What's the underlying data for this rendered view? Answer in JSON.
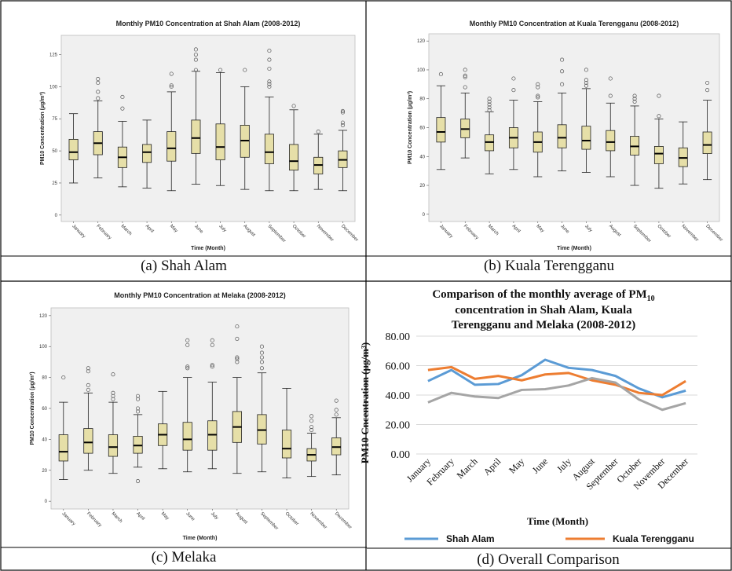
{
  "chart_data": [
    {
      "type": "boxplot",
      "caption": "(a) Shah Alam",
      "title": "Monthly PM10 Concentration at Shah Alam (2008-2012)",
      "xlabel": "Time (Month)",
      "ylabel": "PM10 Concentration (µg/m³)",
      "ylim": [
        -5,
        140
      ],
      "yticks": [
        0,
        25,
        50,
        75,
        100,
        125
      ],
      "categories": [
        "January",
        "February",
        "March",
        "April",
        "May",
        "June",
        "July",
        "August",
        "September",
        "October",
        "November",
        "December"
      ],
      "boxes": [
        {
          "min": 25,
          "q1": 43,
          "median": 49,
          "q3": 59,
          "max": 79,
          "outliers": []
        },
        {
          "min": 29,
          "q1": 47,
          "median": 56,
          "q3": 65,
          "max": 89,
          "outliers": [
            91,
            96,
            103,
            106
          ]
        },
        {
          "min": 22,
          "q1": 37,
          "median": 45,
          "q3": 53,
          "max": 73,
          "outliers": [
            83,
            92
          ]
        },
        {
          "min": 21,
          "q1": 41,
          "median": 49,
          "q3": 55,
          "max": 74,
          "outliers": []
        },
        {
          "min": 19,
          "q1": 42,
          "median": 52,
          "q3": 65,
          "max": 96,
          "outliers": [
            100,
            101,
            110
          ]
        },
        {
          "min": 24,
          "q1": 48,
          "median": 60,
          "q3": 74,
          "max": 112,
          "outliers": [
            113,
            121,
            125,
            129
          ]
        },
        {
          "min": 23,
          "q1": 43,
          "median": 53,
          "q3": 71,
          "max": 111,
          "outliers": [
            113
          ]
        },
        {
          "min": 20,
          "q1": 45,
          "median": 58,
          "q3": 70,
          "max": 100,
          "outliers": [
            113
          ]
        },
        {
          "min": 19,
          "q1": 40,
          "median": 49,
          "q3": 63,
          "max": 92,
          "outliers": [
            100,
            102,
            104,
            114,
            121,
            128
          ]
        },
        {
          "min": 19,
          "q1": 35,
          "median": 42,
          "q3": 55,
          "max": 82,
          "outliers": [
            85
          ]
        },
        {
          "min": 20,
          "q1": 32,
          "median": 39,
          "q3": 45,
          "max": 63,
          "outliers": [
            65
          ]
        },
        {
          "min": 19,
          "q1": 37,
          "median": 43,
          "q3": 50,
          "max": 66,
          "outliers": [
            70,
            72,
            80,
            81
          ]
        }
      ]
    },
    {
      "type": "boxplot",
      "caption": "(b) Kuala Terengganu",
      "title": "Monthly PM10 Concentration at Kuala Terengganu (2008-2012)",
      "xlabel": "Time (Month)",
      "ylabel": "PM10 Concentration (µg/m³)",
      "ylim": [
        -5,
        125
      ],
      "yticks": [
        0,
        20,
        40,
        60,
        80,
        100,
        120
      ],
      "categories": [
        "January",
        "February",
        "March",
        "April",
        "May",
        "June",
        "July",
        "August",
        "September",
        "October",
        "November",
        "December"
      ],
      "boxes": [
        {
          "min": 31,
          "q1": 50,
          "median": 57,
          "q3": 67,
          "max": 89,
          "outliers": [
            97
          ]
        },
        {
          "min": 39,
          "q1": 53,
          "median": 59,
          "q3": 66,
          "max": 84,
          "outliers": [
            88,
            95,
            96,
            100
          ]
        },
        {
          "min": 28,
          "q1": 44,
          "median": 50,
          "q3": 55,
          "max": 71,
          "outliers": [
            72,
            74,
            76,
            78,
            80
          ]
        },
        {
          "min": 31,
          "q1": 46,
          "median": 53,
          "q3": 60,
          "max": 79,
          "outliers": [
            86,
            94
          ]
        },
        {
          "min": 26,
          "q1": 43,
          "median": 50,
          "q3": 57,
          "max": 78,
          "outliers": [
            81,
            82,
            88,
            90
          ]
        },
        {
          "min": 30,
          "q1": 46,
          "median": 53,
          "q3": 62,
          "max": 84,
          "outliers": [
            90,
            99,
            107
          ]
        },
        {
          "min": 29,
          "q1": 45,
          "median": 51,
          "q3": 61,
          "max": 87,
          "outliers": [
            89,
            91,
            93,
            100
          ]
        },
        {
          "min": 26,
          "q1": 44,
          "median": 50,
          "q3": 58,
          "max": 77,
          "outliers": [
            82,
            94
          ]
        },
        {
          "min": 20,
          "q1": 41,
          "median": 47,
          "q3": 54,
          "max": 75,
          "outliers": [
            78,
            80,
            82
          ]
        },
        {
          "min": 18,
          "q1": 35,
          "median": 42,
          "q3": 47,
          "max": 66,
          "outliers": [
            68,
            82
          ]
        },
        {
          "min": 21,
          "q1": 33,
          "median": 39,
          "q3": 46,
          "max": 64,
          "outliers": []
        },
        {
          "min": 24,
          "q1": 42,
          "median": 48,
          "q3": 57,
          "max": 79,
          "outliers": [
            86,
            91
          ]
        }
      ]
    },
    {
      "type": "boxplot",
      "caption": "(c) Melaka",
      "title": "Monthly PM10 Concentration at Melaka (2008-2012)",
      "xlabel": "Time (Month)",
      "ylabel": "PM10 Concentration (µg/m³)",
      "ylim": [
        -5,
        125
      ],
      "yticks": [
        0,
        20,
        40,
        60,
        80,
        100,
        120
      ],
      "categories": [
        "January",
        "February",
        "March",
        "April",
        "May",
        "June",
        "July",
        "August",
        "September",
        "October",
        "November",
        "December"
      ],
      "boxes": [
        {
          "min": 14,
          "q1": 26,
          "median": 32,
          "q3": 43,
          "max": 64,
          "outliers": [
            80
          ]
        },
        {
          "min": 20,
          "q1": 31,
          "median": 38,
          "q3": 47,
          "max": 70,
          "outliers": [
            72,
            75,
            84,
            86
          ]
        },
        {
          "min": 18,
          "q1": 29,
          "median": 35,
          "q3": 43,
          "max": 64,
          "outliers": [
            66,
            68,
            70,
            82
          ]
        },
        {
          "min": 22,
          "q1": 31,
          "median": 36,
          "q3": 42,
          "max": 56,
          "outliers": [
            13,
            58,
            60,
            66,
            68
          ]
        },
        {
          "min": 21,
          "q1": 36,
          "median": 43,
          "q3": 50,
          "max": 71,
          "outliers": []
        },
        {
          "min": 19,
          "q1": 33,
          "median": 40,
          "q3": 51,
          "max": 80,
          "outliers": [
            86,
            87,
            101,
            104
          ]
        },
        {
          "min": 21,
          "q1": 33,
          "median": 43,
          "q3": 52,
          "max": 77,
          "outliers": [
            87,
            88,
            101,
            104
          ]
        },
        {
          "min": 18,
          "q1": 38,
          "median": 48,
          "q3": 58,
          "max": 80,
          "outliers": [
            90,
            92,
            93,
            105,
            113
          ]
        },
        {
          "min": 19,
          "q1": 37,
          "median": 46,
          "q3": 56,
          "max": 83,
          "outliers": [
            86,
            90,
            93,
            96,
            100
          ]
        },
        {
          "min": 15,
          "q1": 28,
          "median": 34,
          "q3": 46,
          "max": 73,
          "outliers": []
        },
        {
          "min": 16,
          "q1": 26,
          "median": 30,
          "q3": 34,
          "max": 44,
          "outliers": [
            46,
            48,
            52,
            55
          ]
        },
        {
          "min": 17,
          "q1": 30,
          "median": 35,
          "q3": 41,
          "max": 54,
          "outliers": [
            56,
            59,
            65
          ]
        }
      ]
    },
    {
      "type": "line",
      "caption": "(d) Overall Comparison",
      "title_main": "Comparison of the monthly average of PM",
      "title_sub": "10",
      "title_line2": "concentration in Shah Alam, Kuala",
      "title_line3": "Terengganu and Melaka (2008-2012)",
      "xlabel": "Time (Month)",
      "ylabel": "PM10 Cncentration (µg/m³)",
      "ylim": [
        0,
        80
      ],
      "yticks": [
        "0.00",
        "20.00",
        "40.00",
        "60.00",
        "80.00"
      ],
      "categories": [
        "January",
        "February",
        "March",
        "April",
        "May",
        "June",
        "July",
        "August",
        "September",
        "October",
        "November",
        "December"
      ],
      "series": [
        {
          "name": "Shah Alam",
          "color": "#5b9bd5",
          "values": [
            49.5,
            57,
            47,
            47.5,
            53.5,
            64,
            58.5,
            57,
            53,
            44.5,
            38.5,
            43
          ]
        },
        {
          "name": "Kuala Terengganu",
          "color": "#ed7d31",
          "values": [
            57,
            59,
            51,
            53,
            50,
            54,
            55,
            50,
            47,
            41.5,
            40,
            49.5
          ]
        },
        {
          "name": "",
          "color": "#a5a5a5",
          "values": [
            35,
            41.5,
            39,
            38,
            43.5,
            44,
            46.5,
            51.5,
            48.5,
            37,
            30,
            34.5
          ]
        }
      ],
      "grid": true,
      "legend_position": "bottom"
    }
  ]
}
